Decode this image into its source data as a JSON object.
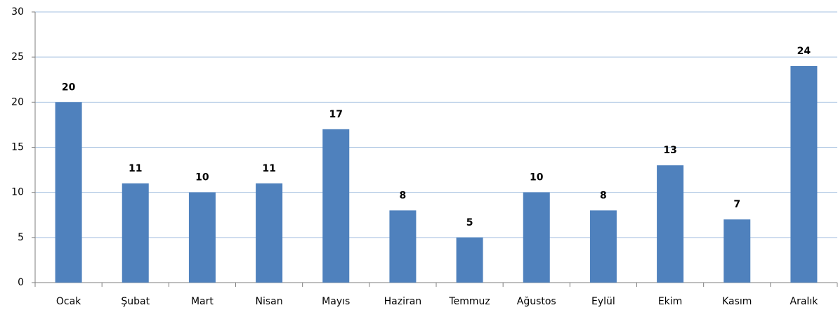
{
  "chart_data": {
    "type": "bar",
    "categories": [
      "Ocak",
      "Şubat",
      "Mart",
      "Nisan",
      "Mayıs",
      "Haziran",
      "Temmuz",
      "Ağustos",
      "Eylül",
      "Ekim",
      "Kasım",
      "Aralık"
    ],
    "values": [
      20,
      11,
      10,
      11,
      17,
      8,
      5,
      10,
      8,
      13,
      7,
      24
    ],
    "color": "#4f81bd",
    "ylim": [
      0,
      30
    ],
    "yticks": [
      0,
      5,
      10,
      15,
      20,
      25,
      30
    ],
    "grid": true
  }
}
